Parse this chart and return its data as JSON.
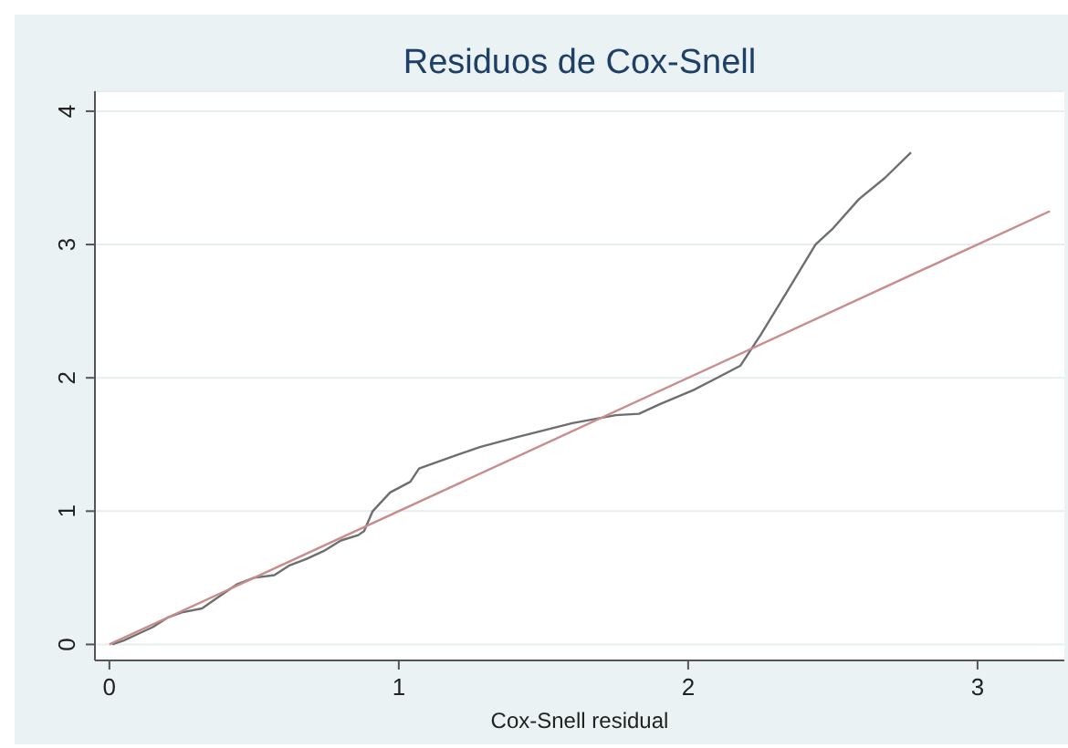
{
  "chart_data": {
    "type": "line",
    "title": "Residuos de Cox-Snell",
    "xlabel": "Cox-Snell residual",
    "xlim": [
      -0.05,
      3.3
    ],
    "xticks": [
      0,
      1,
      2,
      3
    ],
    "ylim": [
      -0.12,
      4.15
    ],
    "yticks": [
      0,
      1,
      2,
      3,
      4
    ],
    "grid": "y",
    "series": [
      {
        "color": "#6e6e6e",
        "x": [
          0.01,
          0.05,
          0.1,
          0.15,
          0.2,
          0.25,
          0.32,
          0.38,
          0.44,
          0.5,
          0.57,
          0.62,
          0.68,
          0.74,
          0.8,
          0.86,
          0.88,
          0.91,
          0.97,
          1.04,
          1.07,
          1.2,
          1.28,
          1.4,
          1.6,
          1.75,
          1.83,
          1.9,
          2.02,
          2.1,
          2.18,
          2.25,
          2.34,
          2.44,
          2.5,
          2.59,
          2.68,
          2.77
        ],
        "values": [
          0,
          0.03,
          0.08,
          0.13,
          0.2,
          0.24,
          0.27,
          0.36,
          0.45,
          0.5,
          0.52,
          0.59,
          0.64,
          0.7,
          0.78,
          0.82,
          0.85,
          1.0,
          1.14,
          1.22,
          1.32,
          1.42,
          1.48,
          1.55,
          1.66,
          1.72,
          1.73,
          1.8,
          1.91,
          2.0,
          2.09,
          2.32,
          2.64,
          3.0,
          3.12,
          3.34,
          3.5,
          3.69
        ]
      },
      {
        "color": "#c88c8c",
        "x": [
          0,
          3.25
        ],
        "values": [
          0,
          3.25
        ]
      }
    ]
  }
}
